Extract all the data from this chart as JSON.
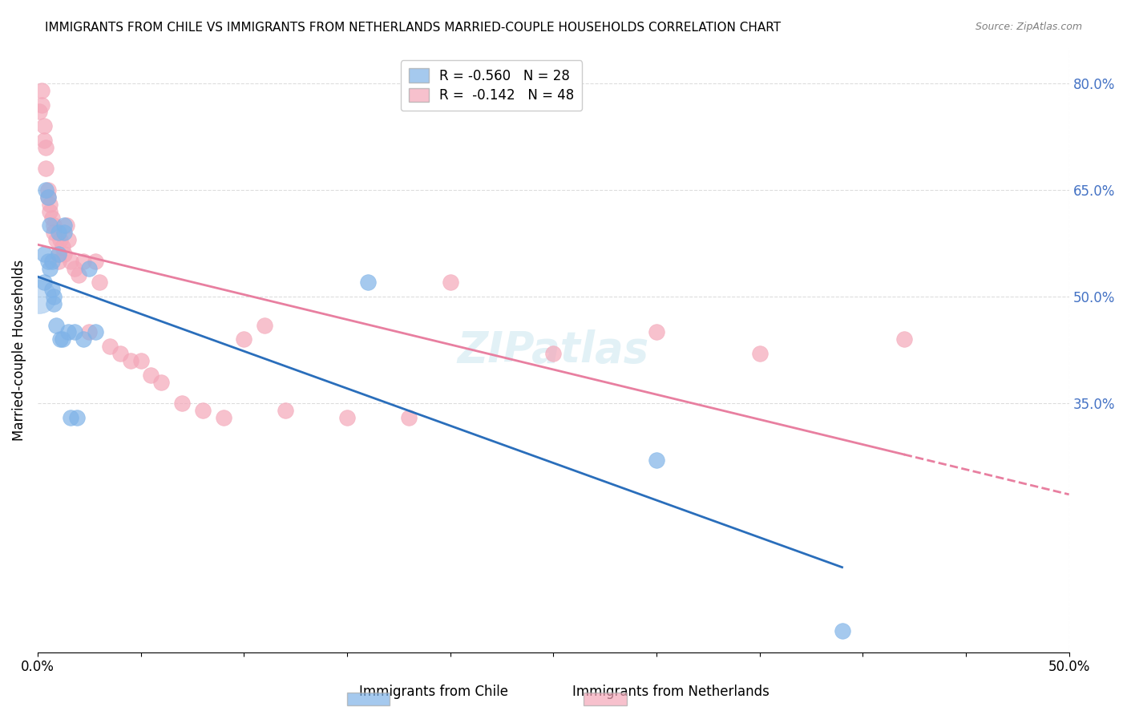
{
  "title": "IMMIGRANTS FROM CHILE VS IMMIGRANTS FROM NETHERLANDS MARRIED-COUPLE HOUSEHOLDS CORRELATION CHART",
  "source": "Source: ZipAtlas.com",
  "ylabel": "Married-couple Households",
  "xlim": [
    0.0,
    0.5
  ],
  "ylim": [
    0.0,
    0.85
  ],
  "right_yticks": [
    0.35,
    0.5,
    0.65,
    0.8
  ],
  "right_yticklabels": [
    "35.0%",
    "50.0%",
    "65.0%",
    "80.0%"
  ],
  "grid_color": "#dddddd",
  "background_color": "#ffffff",
  "watermark": "ZIPatlas",
  "legend_R1": "-0.560",
  "legend_N1": "28",
  "legend_R2": "-0.142",
  "legend_N2": "48",
  "legend_label1": "Immigrants from Chile",
  "legend_label2": "Immigrants from Netherlands",
  "color_chile": "#7fb3e8",
  "color_netherlands": "#f4a7b9",
  "color_line_chile": "#2a6ebb",
  "color_line_netherlands": "#e87fa0",
  "chile_x": [
    0.003,
    0.003,
    0.004,
    0.005,
    0.005,
    0.006,
    0.006,
    0.007,
    0.007,
    0.008,
    0.008,
    0.009,
    0.01,
    0.01,
    0.011,
    0.012,
    0.013,
    0.013,
    0.015,
    0.016,
    0.018,
    0.019,
    0.022,
    0.025,
    0.028,
    0.3,
    0.16,
    0.39
  ],
  "chile_y": [
    0.56,
    0.52,
    0.65,
    0.64,
    0.55,
    0.6,
    0.54,
    0.55,
    0.51,
    0.5,
    0.49,
    0.46,
    0.59,
    0.56,
    0.44,
    0.44,
    0.59,
    0.6,
    0.45,
    0.33,
    0.45,
    0.33,
    0.44,
    0.54,
    0.45,
    0.27,
    0.52,
    0.03
  ],
  "netherlands_x": [
    0.001,
    0.002,
    0.002,
    0.003,
    0.003,
    0.004,
    0.004,
    0.005,
    0.005,
    0.006,
    0.006,
    0.007,
    0.008,
    0.008,
    0.009,
    0.01,
    0.01,
    0.011,
    0.012,
    0.013,
    0.014,
    0.015,
    0.016,
    0.018,
    0.02,
    0.022,
    0.025,
    0.028,
    0.03,
    0.035,
    0.04,
    0.045,
    0.05,
    0.055,
    0.06,
    0.07,
    0.08,
    0.09,
    0.1,
    0.11,
    0.12,
    0.15,
    0.18,
    0.2,
    0.25,
    0.3,
    0.35,
    0.42
  ],
  "netherlands_y": [
    0.76,
    0.79,
    0.77,
    0.74,
    0.72,
    0.71,
    0.68,
    0.65,
    0.64,
    0.63,
    0.62,
    0.61,
    0.6,
    0.59,
    0.58,
    0.56,
    0.55,
    0.58,
    0.57,
    0.56,
    0.6,
    0.58,
    0.55,
    0.54,
    0.53,
    0.55,
    0.45,
    0.55,
    0.52,
    0.43,
    0.42,
    0.41,
    0.41,
    0.39,
    0.38,
    0.35,
    0.34,
    0.33,
    0.44,
    0.46,
    0.34,
    0.33,
    0.33,
    0.52,
    0.42,
    0.45,
    0.42,
    0.44
  ]
}
